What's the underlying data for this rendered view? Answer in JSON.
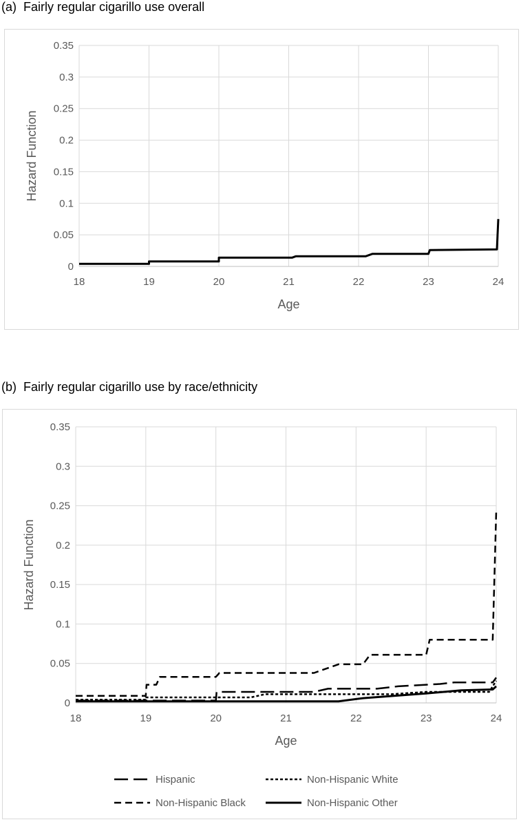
{
  "panels": {
    "a": {
      "title": "(a)  Fairly regular cigarillo use overall"
    },
    "b": {
      "title": "(b)  Fairly regular cigarillo use by race/ethnicity"
    }
  },
  "chart_data": [
    {
      "type": "line",
      "title": "(a)  Fairly regular cigarillo use overall",
      "xlabel": "Age",
      "ylabel": "Hazard Function",
      "xlim": [
        18,
        24
      ],
      "ylim": [
        0,
        0.35
      ],
      "xticks": [
        "18",
        "19",
        "20",
        "21",
        "22",
        "23",
        "24"
      ],
      "yticks": [
        "0",
        "0.05",
        "0.1",
        "0.15",
        "0.2",
        "0.25",
        "0.3",
        "0.35"
      ],
      "grid": true,
      "series": [
        {
          "style": "solid",
          "color": "#000000",
          "x": [
            18,
            19,
            19,
            20,
            20,
            21.05,
            21.1,
            22.1,
            22.2,
            23.0,
            23.02,
            23.98,
            24.0
          ],
          "y": [
            0.004,
            0.004,
            0.008,
            0.008,
            0.014,
            0.014,
            0.016,
            0.016,
            0.02,
            0.02,
            0.026,
            0.027,
            0.075
          ]
        }
      ]
    },
    {
      "type": "line",
      "title": "(b)  Fairly regular cigarillo use by race/ethnicity",
      "xlabel": "Age",
      "ylabel": "Hazard Function",
      "xlim": [
        18,
        24
      ],
      "ylim": [
        0,
        0.35
      ],
      "xticks": [
        "18",
        "19",
        "20",
        "21",
        "22",
        "23",
        "24"
      ],
      "yticks": [
        "0",
        "0.05",
        "0.1",
        "0.15",
        "0.2",
        "0.25",
        "0.3",
        "0.35"
      ],
      "grid": true,
      "legend_position": "bottom",
      "series": [
        {
          "name": "Hispanic",
          "style": "longdash",
          "color": "#000000",
          "x": [
            18,
            20,
            20.01,
            21.4,
            21.6,
            22.3,
            22.6,
            23.2,
            23.4,
            23.95,
            24.0
          ],
          "y": [
            0.003,
            0.003,
            0.014,
            0.014,
            0.018,
            0.018,
            0.021,
            0.024,
            0.026,
            0.026,
            0.032
          ]
        },
        {
          "name": "Non-Hispanic White",
          "style": "dotted",
          "color": "#000000",
          "x": [
            18,
            19,
            19,
            20.5,
            20.7,
            22.5,
            23.0,
            23.9,
            24.0
          ],
          "y": [
            0.004,
            0.004,
            0.007,
            0.007,
            0.011,
            0.011,
            0.014,
            0.014,
            0.028
          ]
        },
        {
          "name": "Non-Hispanic Black",
          "style": "dashed",
          "color": "#000000",
          "x": [
            18,
            19,
            19.01,
            19.15,
            19.2,
            20,
            20.05,
            21.4,
            21.75,
            22.1,
            22.2,
            23.0,
            23.05,
            23.95,
            24.0
          ],
          "y": [
            0.009,
            0.009,
            0.023,
            0.023,
            0.033,
            0.033,
            0.038,
            0.038,
            0.049,
            0.049,
            0.061,
            0.061,
            0.08,
            0.08,
            0.243
          ]
        },
        {
          "name": "Non-Hispanic Other",
          "style": "solid",
          "color": "#000000",
          "x": [
            18,
            21.75,
            22.1,
            23.0,
            23.5,
            23.95,
            24.0
          ],
          "y": [
            0.002,
            0.002,
            0.006,
            0.012,
            0.016,
            0.017,
            0.021
          ]
        }
      ]
    }
  ]
}
